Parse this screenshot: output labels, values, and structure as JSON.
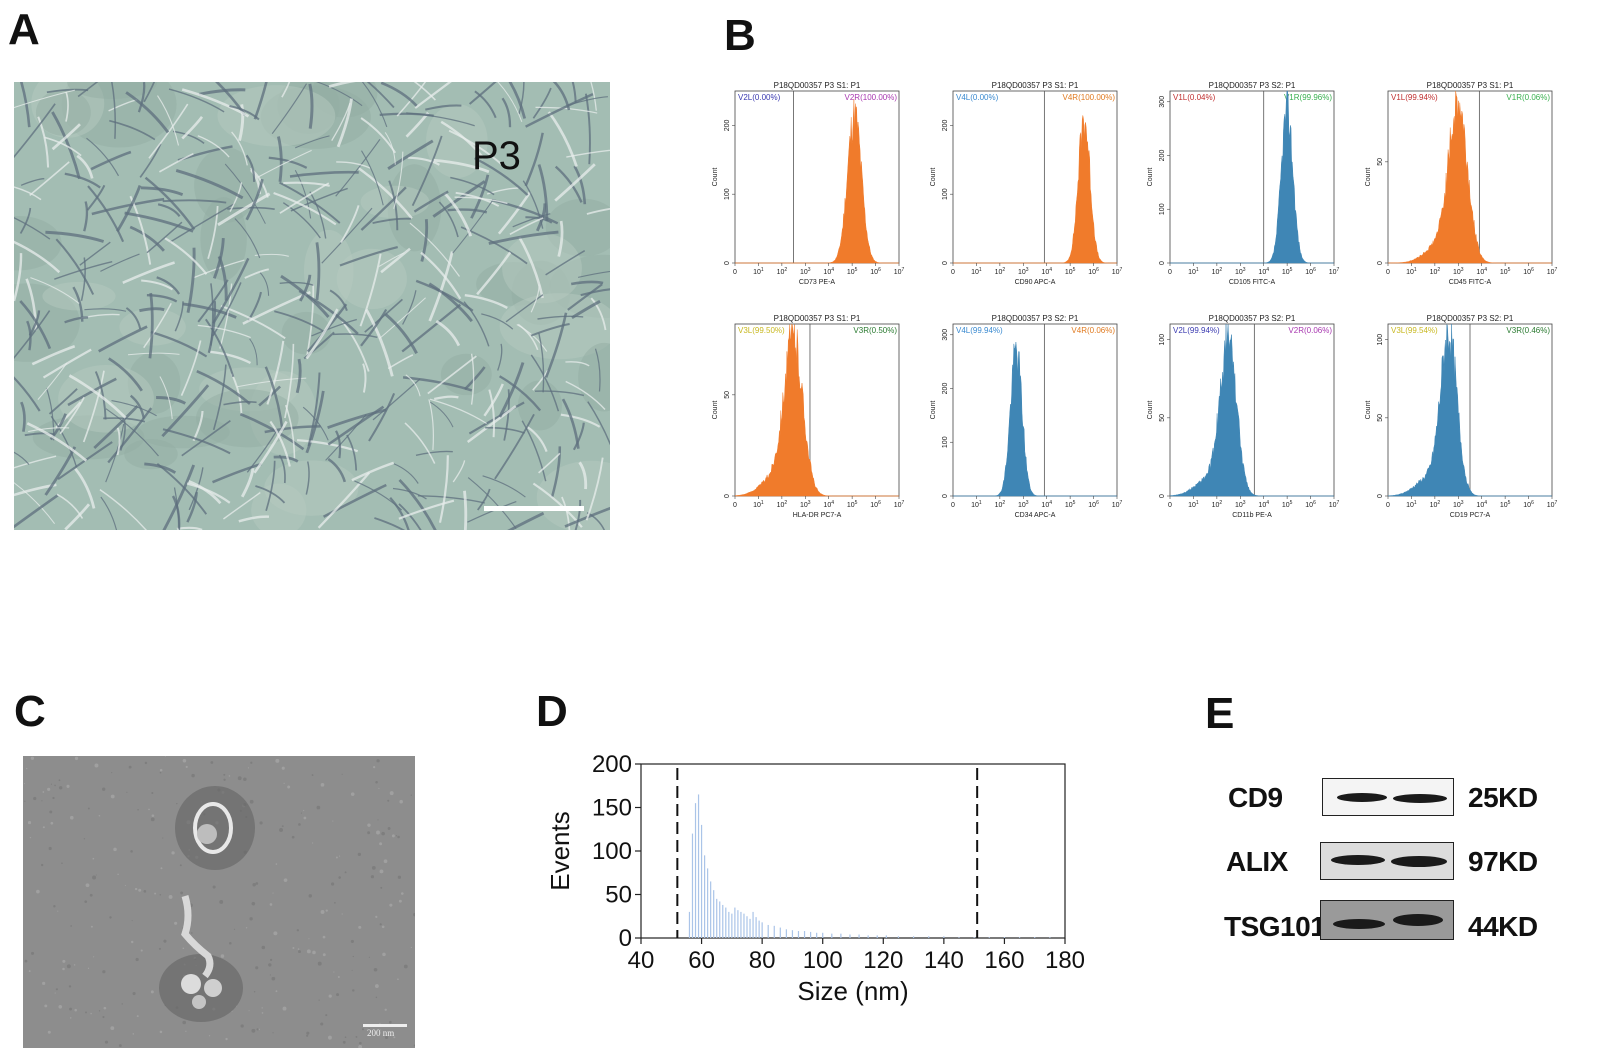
{
  "panels": {
    "a": {
      "letter": "A",
      "passage_label": "P3"
    },
    "b": {
      "letter": "B"
    },
    "c": {
      "letter": "C",
      "scale_label": "200 nm"
    },
    "d": {
      "letter": "D"
    },
    "e": {
      "letter": "E"
    }
  },
  "colors": {
    "orange": "#f07b2b",
    "blue": "#3f86b5",
    "band": "#1a1a1a"
  },
  "flow_plots": [
    {
      "title": "P18QD00357  P3  S1: P1",
      "gate_left": "V2L(0.00%)",
      "gate_right": "V2R(100.00%)",
      "gate_left_color": "#3a3ab0",
      "gate_right_color": "#a838b0",
      "xlabel": "CD73 PE-A",
      "ylabel": "Count",
      "yticks": [
        "0",
        "100",
        "200"
      ],
      "ymax": 250,
      "gate_decade": 2.5,
      "peak_decade": 5.1,
      "spread": 0.3,
      "peak_count": 215,
      "tail": 0,
      "color": "orange"
    },
    {
      "title": "P18QD00357  P3  S1: P1",
      "gate_left": "V4L(0.00%)",
      "gate_right": "V4R(100.00%)",
      "gate_left_color": "#3a8ad0",
      "gate_right_color": "#e07a20",
      "xlabel": "CD90 APC-A",
      "ylabel": "Count",
      "yticks": [
        "0",
        "100",
        "200"
      ],
      "ymax": 250,
      "gate_decade": 3.9,
      "peak_decade": 5.6,
      "spread": 0.25,
      "peak_count": 210,
      "tail": 0,
      "color": "orange"
    },
    {
      "title": "P18QD00357  P3  S2: P1",
      "gate_left": "V1L(0.04%)",
      "gate_right": "V1R(99.96%)",
      "gate_left_color": "#c03030",
      "gate_right_color": "#3ab050",
      "xlabel": "CD105 FITC-A",
      "ylabel": "Count",
      "yticks": [
        "0",
        "100",
        "200",
        "300"
      ],
      "ymax": 320,
      "gate_decade": 4.0,
      "peak_decade": 5.0,
      "spread": 0.25,
      "peak_count": 285,
      "tail": 0,
      "color": "blue"
    },
    {
      "title": "P18QD00357  P3  S1: P1",
      "gate_left": "V1L(99.94%)",
      "gate_right": "V1R(0.06%)",
      "gate_left_color": "#c03030",
      "gate_right_color": "#3ab050",
      "xlabel": "CD45 FITC-A",
      "ylabel": "Count",
      "yticks": [
        "0",
        "50"
      ],
      "ymax": 85,
      "gate_decade": 3.9,
      "peak_decade": 3.0,
      "spread": 0.4,
      "peak_count": 75,
      "tail": 1,
      "color": "orange"
    },
    {
      "title": "P18QD00357  P3  S1: P1",
      "gate_left": "V3L(99.50%)",
      "gate_right": "V3R(0.50%)",
      "gate_left_color": "#c8b820",
      "gate_right_color": "#2a7a30",
      "xlabel": "HLA-DR PC7-A",
      "ylabel": "Count",
      "yticks": [
        "0",
        "50"
      ],
      "ymax": 85,
      "gate_decade": 3.2,
      "peak_decade": 2.5,
      "spread": 0.4,
      "peak_count": 75,
      "tail": 1,
      "color": "orange"
    },
    {
      "title": "P18QD00357  P3  S2: P1",
      "gate_left": "V4L(99.94%)",
      "gate_right": "V4R(0.06%)",
      "gate_left_color": "#3a8ad0",
      "gate_right_color": "#e07a20",
      "xlabel": "CD34 APC-A",
      "ylabel": "Count",
      "yticks": [
        "0",
        "100",
        "200",
        "300"
      ],
      "ymax": 320,
      "gate_decade": 3.9,
      "peak_decade": 2.7,
      "spread": 0.25,
      "peak_count": 270,
      "tail": 0,
      "color": "blue"
    },
    {
      "title": "P18QD00357  P3  S2: P1",
      "gate_left": "V2L(99.94%)",
      "gate_right": "V2R(0.06%)",
      "gate_left_color": "#3a3ab0",
      "gate_right_color": "#a838b0",
      "xlabel": "CD11b PE-A",
      "ylabel": "Count",
      "yticks": [
        "0",
        "50",
        "100"
      ],
      "ymax": 110,
      "gate_decade": 3.6,
      "peak_decade": 2.5,
      "spread": 0.35,
      "peak_count": 95,
      "tail": 1,
      "color": "blue"
    },
    {
      "title": "P18QD00357  P3  S2: P1",
      "gate_left": "V3L(99.54%)",
      "gate_right": "V3R(0.46%)",
      "gate_left_color": "#c8b820",
      "gate_right_color": "#2a7a30",
      "xlabel": "CD19 PC7-A",
      "ylabel": "Count",
      "yticks": [
        "0",
        "50",
        "100"
      ],
      "ymax": 110,
      "gate_decade": 3.5,
      "peak_decade": 2.6,
      "spread": 0.35,
      "peak_count": 100,
      "tail": 1,
      "color": "blue"
    }
  ],
  "flow_xticks": [
    "0",
    "10",
    "10",
    "10",
    "10",
    "10",
    "10",
    "10"
  ],
  "flow_xtick_exponents": [
    "",
    "1",
    "2",
    "3",
    "4",
    "5",
    "6",
    "7"
  ],
  "chart_data": {
    "type": "bar",
    "xlabel": "Size (nm)",
    "ylabel": "Events",
    "xlim": [
      40,
      180
    ],
    "ylim": [
      0,
      200
    ],
    "xticks": [
      40,
      60,
      80,
      100,
      120,
      140,
      160,
      180
    ],
    "yticks": [
      0,
      50,
      100,
      150,
      200
    ],
    "dashed_lines": [
      52,
      151
    ],
    "bar_color": "#aac4e8",
    "x": [
      56,
      57,
      58,
      59,
      60,
      61,
      62,
      63,
      64,
      65,
      66,
      67,
      68,
      69,
      70,
      71,
      72,
      73,
      74,
      75,
      76,
      77,
      78,
      79,
      80,
      82,
      84,
      86,
      88,
      90,
      92,
      94,
      96,
      98,
      100,
      103,
      106,
      109,
      112,
      115,
      118,
      121,
      125,
      130,
      135,
      140,
      145,
      150,
      155,
      160,
      165,
      170,
      175
    ],
    "values": [
      30,
      120,
      155,
      165,
      130,
      95,
      80,
      65,
      55,
      45,
      42,
      38,
      35,
      30,
      28,
      35,
      32,
      30,
      28,
      25,
      22,
      30,
      24,
      20,
      18,
      15,
      14,
      12,
      10,
      9,
      8,
      8,
      7,
      6,
      6,
      5,
      5,
      4,
      4,
      3,
      3,
      3,
      2,
      2,
      2,
      2,
      1,
      1,
      1,
      1,
      1,
      1,
      1
    ]
  },
  "western_blot": {
    "rows": [
      {
        "protein": "CD9",
        "size": "25KD"
      },
      {
        "protein": "ALIX",
        "size": "97KD"
      },
      {
        "protein": "TSG101",
        "size": "44KD"
      }
    ]
  }
}
